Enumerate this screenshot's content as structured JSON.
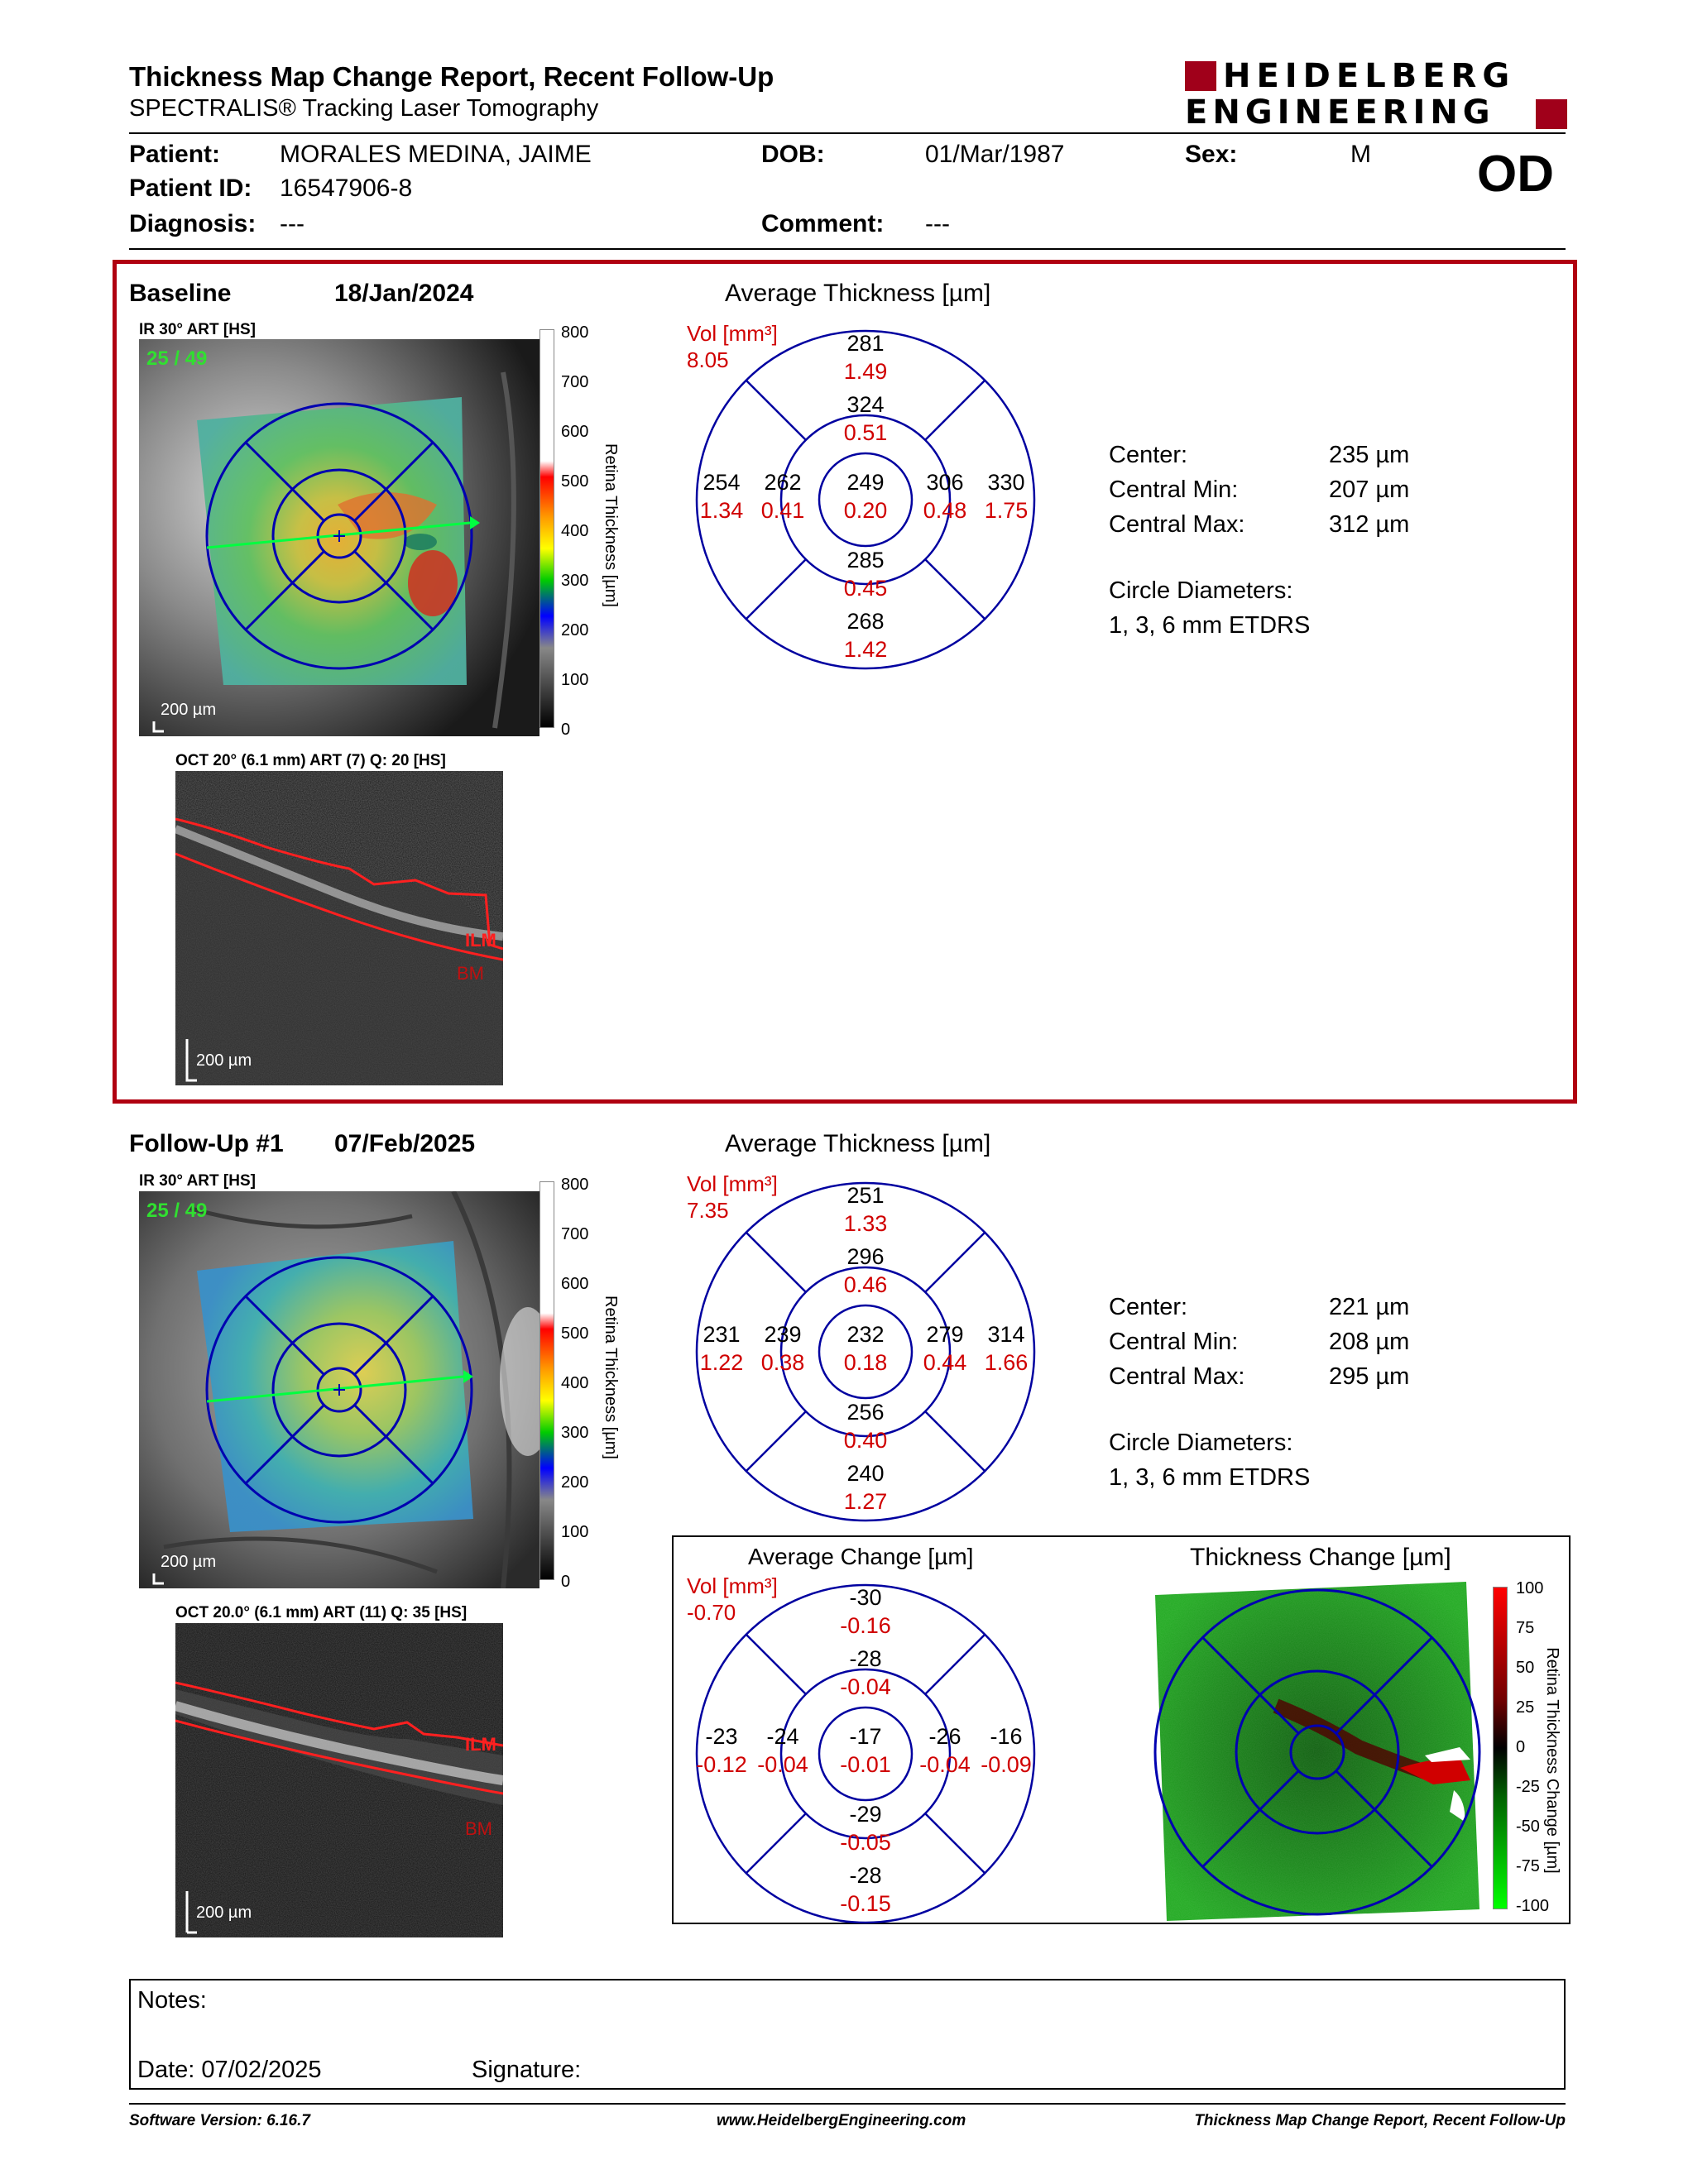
{
  "header": {
    "title": "Thickness Map Change Report, Recent Follow-Up",
    "subtitle": "SPECTRALIS® Tracking Laser Tomography",
    "logo_line1": "HEIDELBERG",
    "logo_line2": "ENGINEERING"
  },
  "patient": {
    "patient_label": "Patient:",
    "patient_value": "MORALES MEDINA, JAIME",
    "dob_label": "DOB:",
    "dob_value": "01/Mar/1987",
    "sex_label": "Sex:",
    "sex_value": "M",
    "eye": "OD",
    "id_label": "Patient ID:",
    "id_value": "16547906-8",
    "diagnosis_label": "Diagnosis:",
    "diagnosis_value": "---",
    "comment_label": "Comment:",
    "comment_value": "---"
  },
  "baseline": {
    "label": "Baseline",
    "date": "18/Jan/2024",
    "ir_label": "IR 30° ART [HS]",
    "frame": "25 / 49",
    "scale": "200 µm",
    "colorbar_ticks": [
      "800",
      "700",
      "600",
      "500",
      "400",
      "300",
      "200",
      "100",
      "0"
    ],
    "colorbar_title": "Retina Thickness [µm]",
    "oct_label": "OCT 20° (6.1 mm) ART (7) Q: 20 [HS]",
    "oct_scale": "200 µm",
    "ilm": "ILM",
    "bm": "BM",
    "grid_title": "Average Thickness [µm]",
    "vol_label": "Vol [mm³]",
    "vol_value": "8.05",
    "sectors": {
      "outer_sup": [
        "281",
        "1.49"
      ],
      "inner_sup": [
        "324",
        "0.51"
      ],
      "outer_temp": [
        "254",
        "1.34"
      ],
      "inner_temp": [
        "262",
        "0.41"
      ],
      "center": [
        "249",
        "0.20"
      ],
      "inner_nas": [
        "306",
        "0.48"
      ],
      "outer_nas": [
        "330",
        "1.75"
      ],
      "inner_inf": [
        "285",
        "0.45"
      ],
      "outer_inf": [
        "268",
        "1.42"
      ]
    },
    "stats": [
      {
        "label": "Center:",
        "value": "235 µm"
      },
      {
        "label": "Central Min:",
        "value": "207 µm"
      },
      {
        "label": "Central Max:",
        "value": "312 µm"
      }
    ],
    "circle_label": "Circle Diameters:",
    "circle_value": "1, 3, 6 mm ETDRS"
  },
  "followup": {
    "label": "Follow-Up #1",
    "date": "07/Feb/2025",
    "ir_label": "IR 30° ART [HS]",
    "frame": "25 / 49",
    "scale": "200 µm",
    "colorbar_ticks": [
      "800",
      "700",
      "600",
      "500",
      "400",
      "300",
      "200",
      "100",
      "0"
    ],
    "colorbar_title": "Retina Thickness [µm]",
    "oct_label": "OCT 20.0° (6.1 mm) ART (11) Q: 35 [HS]",
    "oct_scale": "200 µm",
    "ilm": "ILM",
    "bm": "BM",
    "grid_title": "Average Thickness [µm]",
    "vol_label": "Vol [mm³]",
    "vol_value": "7.35",
    "sectors": {
      "outer_sup": [
        "251",
        "1.33"
      ],
      "inner_sup": [
        "296",
        "0.46"
      ],
      "outer_temp": [
        "231",
        "1.22"
      ],
      "inner_temp": [
        "239",
        "0.38"
      ],
      "center": [
        "232",
        "0.18"
      ],
      "inner_nas": [
        "279",
        "0.44"
      ],
      "outer_nas": [
        "314",
        "1.66"
      ],
      "inner_inf": [
        "256",
        "0.40"
      ],
      "outer_inf": [
        "240",
        "1.27"
      ]
    },
    "stats": [
      {
        "label": "Center:",
        "value": "221 µm"
      },
      {
        "label": "Central Min:",
        "value": "208 µm"
      },
      {
        "label": "Central Max:",
        "value": "295 µm"
      }
    ],
    "circle_label": "Circle Diameters:",
    "circle_value": "1, 3, 6 mm ETDRS"
  },
  "change": {
    "grid_title": "Average Change [µm]",
    "vol_label": "Vol [mm³]",
    "vol_value": "-0.70",
    "sectors": {
      "outer_sup": [
        "-30",
        "-0.16"
      ],
      "inner_sup": [
        "-28",
        "-0.04"
      ],
      "outer_temp": [
        "-23",
        "-0.12"
      ],
      "inner_temp": [
        "-24",
        "-0.04"
      ],
      "center": [
        "-17",
        "-0.01"
      ],
      "inner_nas": [
        "-26",
        "-0.04"
      ],
      "outer_nas": [
        "-16",
        "-0.09"
      ],
      "inner_inf": [
        "-29",
        "-0.05"
      ],
      "outer_inf": [
        "-28",
        "-0.15"
      ]
    },
    "map_title": "Thickness Change [µm]",
    "colorbar_ticks": [
      "100",
      "75",
      "50",
      "25",
      "0",
      "-25",
      "-50",
      "-75",
      "-100"
    ],
    "colorbar_title": "Retina Thickness Change [µm]"
  },
  "notes": {
    "notes_label": "Notes:",
    "date_label": "Date: 07/02/2025",
    "signature_label": "Signature:"
  },
  "footer": {
    "software": "Software Version: 6.16.7",
    "website": "www.HeidelbergEngineering.com",
    "report": "Thickness Map Change Report, Recent Follow-Up"
  },
  "colors": {
    "frame_red": "#b00010",
    "grid_blue": "#0000a0",
    "value_red": "#d00000",
    "logo_red": "#a0001a"
  }
}
